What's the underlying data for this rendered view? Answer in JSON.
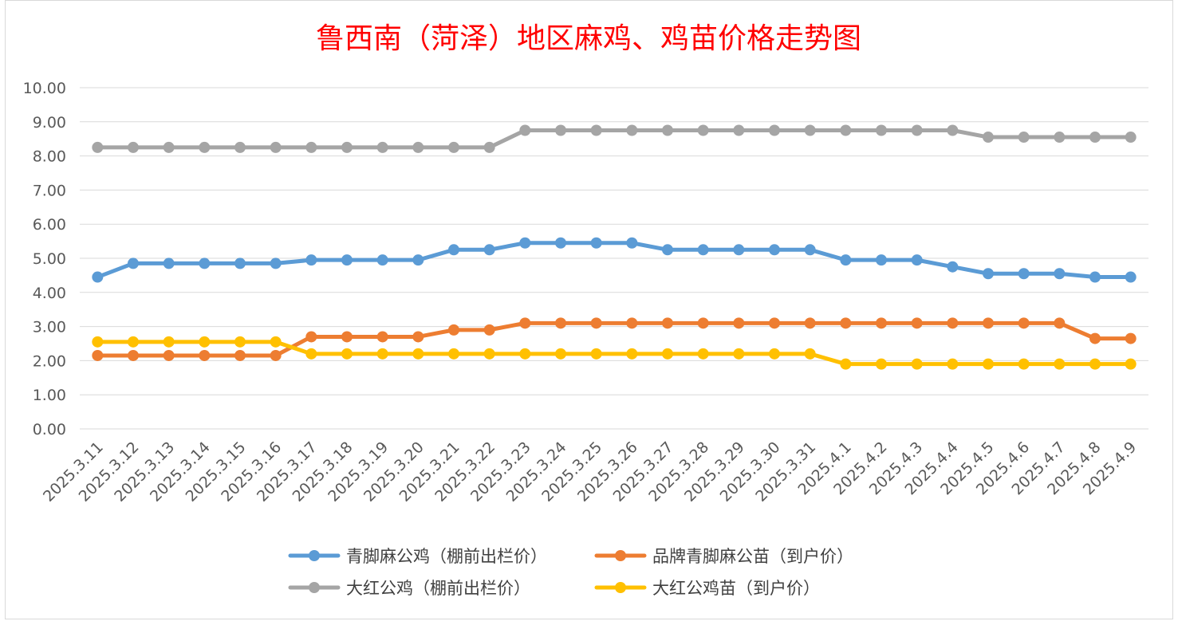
{
  "chart_data": {
    "type": "line",
    "title": "鲁西南（菏泽）地区麻鸡、鸡苗价格走势图",
    "xlabel": "",
    "ylabel": "",
    "ylim": [
      0,
      10
    ],
    "yticks": [
      "0.00",
      "1.00",
      "2.00",
      "3.00",
      "4.00",
      "5.00",
      "6.00",
      "7.00",
      "8.00",
      "9.00",
      "10.00"
    ],
    "grid": true,
    "legend_position": "bottom",
    "categories": [
      "2025.3.11",
      "2025.3.12",
      "2025.3.13",
      "2025.3.14",
      "2025.3.15",
      "2025.3.16",
      "2025.3.17",
      "2025.3.18",
      "2025.3.19",
      "2025.3.20",
      "2025.3.21",
      "2025.3.22",
      "2025.3.23",
      "2025.3.24",
      "2025.3.25",
      "2025.3.26",
      "2025.3.27",
      "2025.3.28",
      "2025.3.29",
      "2025.3.30",
      "2025.3.31",
      "2025.4.1",
      "2025.4.2",
      "2025.4.3",
      "2025.4.4",
      "2025.4.5",
      "2025.4.6",
      "2025.4.7",
      "2025.4.8",
      "2025.4.9"
    ],
    "series": [
      {
        "name": "青脚麻公鸡（棚前出栏价）",
        "color": "#5b9bd5",
        "values": [
          4.45,
          4.85,
          4.85,
          4.85,
          4.85,
          4.85,
          4.95,
          4.95,
          4.95,
          4.95,
          5.25,
          5.25,
          5.45,
          5.45,
          5.45,
          5.45,
          5.25,
          5.25,
          5.25,
          5.25,
          5.25,
          4.95,
          4.95,
          4.95,
          4.75,
          4.55,
          4.55,
          4.55,
          4.45,
          4.45
        ]
      },
      {
        "name": "品牌青脚麻公苗（到户价）",
        "color": "#ed7d31",
        "values": [
          2.15,
          2.15,
          2.15,
          2.15,
          2.15,
          2.15,
          2.7,
          2.7,
          2.7,
          2.7,
          2.9,
          2.9,
          3.1,
          3.1,
          3.1,
          3.1,
          3.1,
          3.1,
          3.1,
          3.1,
          3.1,
          3.1,
          3.1,
          3.1,
          3.1,
          3.1,
          3.1,
          3.1,
          2.65,
          2.65
        ]
      },
      {
        "name": "大红公鸡（棚前出栏价）",
        "color": "#a5a5a5",
        "values": [
          8.25,
          8.25,
          8.25,
          8.25,
          8.25,
          8.25,
          8.25,
          8.25,
          8.25,
          8.25,
          8.25,
          8.25,
          8.75,
          8.75,
          8.75,
          8.75,
          8.75,
          8.75,
          8.75,
          8.75,
          8.75,
          8.75,
          8.75,
          8.75,
          8.75,
          8.55,
          8.55,
          8.55,
          8.55,
          8.55
        ]
      },
      {
        "name": "大红公鸡苗（到户价）",
        "color": "#ffc000",
        "values": [
          2.55,
          2.55,
          2.55,
          2.55,
          2.55,
          2.55,
          2.2,
          2.2,
          2.2,
          2.2,
          2.2,
          2.2,
          2.2,
          2.2,
          2.2,
          2.2,
          2.2,
          2.2,
          2.2,
          2.2,
          2.2,
          1.9,
          1.9,
          1.9,
          1.9,
          1.9,
          1.9,
          1.9,
          1.9,
          1.9
        ]
      }
    ]
  }
}
